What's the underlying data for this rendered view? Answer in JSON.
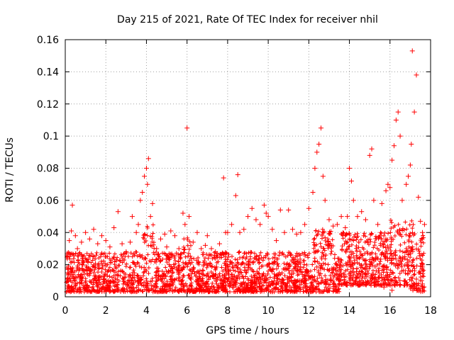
{
  "chart_data": {
    "type": "scatter",
    "title": "Day 215 of 2021, Rate Of TEC Index for receiver nhil",
    "xlabel": "GPS time / hours",
    "ylabel": "ROTI / TECUs",
    "xlim": [
      0,
      18
    ],
    "ylim": [
      0,
      0.16
    ],
    "xticks": [
      0,
      2,
      4,
      6,
      8,
      10,
      12,
      14,
      16,
      18
    ],
    "xtick_labels": [
      "0",
      "2",
      "4",
      "6",
      "8",
      "10",
      "12",
      "14",
      "16",
      "18"
    ],
    "yticks": [
      0,
      0.02,
      0.04,
      0.06,
      0.08,
      0.1,
      0.12,
      0.14,
      0.16
    ],
    "ytick_labels": [
      "0",
      "0.02",
      "0.04",
      "0.06",
      "0.08",
      "0.1",
      "0.12",
      "0.14",
      "0.16"
    ],
    "grid": true,
    "marker": "+",
    "color": "#ff0000",
    "series": [
      {
        "name": "ROTI",
        "x": [
          0.1,
          0.2,
          0.3,
          0.35,
          0.5,
          0.6,
          0.8,
          1.0,
          1.2,
          1.4,
          1.6,
          1.8,
          2.0,
          2.2,
          2.4,
          2.6,
          2.8,
          3.0,
          3.2,
          3.3,
          3.5,
          3.6,
          3.7,
          3.8,
          3.9,
          4.0,
          4.05,
          4.1,
          4.2,
          4.3,
          4.5,
          4.7,
          4.9,
          5.0,
          5.2,
          5.4,
          5.6,
          5.8,
          5.9,
          6.0,
          6.1,
          6.3,
          6.5,
          6.7,
          6.9,
          7.0,
          7.2,
          7.4,
          7.6,
          7.8,
          7.9,
          8.0,
          8.2,
          8.4,
          8.5,
          8.6,
          8.8,
          9.0,
          9.2,
          9.4,
          9.6,
          9.8,
          9.9,
          10.0,
          10.2,
          10.4,
          10.6,
          10.8,
          11.0,
          11.2,
          11.4,
          11.6,
          11.8,
          12.0,
          12.2,
          12.3,
          12.4,
          12.5,
          12.6,
          12.7,
          12.8,
          13.0,
          13.2,
          13.4,
          13.6,
          13.8,
          13.9,
          14.0,
          14.1,
          14.2,
          14.4,
          14.6,
          14.8,
          15.0,
          15.1,
          15.2,
          15.4,
          15.6,
          15.8,
          15.9,
          16.0,
          16.1,
          16.2,
          16.3,
          16.4,
          16.5,
          16.6,
          16.8,
          16.9,
          17.0,
          17.05,
          17.1,
          17.2,
          17.3,
          17.4,
          17.5,
          17.6,
          17.7,
          0.2,
          0.5,
          1.1,
          1.5,
          2.1,
          2.5,
          3.1,
          3.4,
          4.4,
          4.8,
          5.3,
          5.7,
          6.2,
          6.6,
          7.3,
          7.7,
          8.3,
          8.7,
          9.3,
          9.7,
          10.3,
          10.7,
          11.3,
          11.7,
          12.1,
          12.5,
          13.1,
          13.5,
          14.3,
          14.7,
          15.3,
          15.7,
          16.1,
          16.7,
          17.3,
          17.6
        ],
        "y": [
          0.027,
          0.035,
          0.041,
          0.057,
          0.038,
          0.03,
          0.034,
          0.04,
          0.036,
          0.042,
          0.033,
          0.038,
          0.035,
          0.031,
          0.043,
          0.053,
          0.033,
          0.028,
          0.034,
          0.05,
          0.04,
          0.045,
          0.06,
          0.065,
          0.075,
          0.08,
          0.07,
          0.086,
          0.05,
          0.058,
          0.03,
          0.036,
          0.039,
          0.031,
          0.041,
          0.038,
          0.03,
          0.052,
          0.045,
          0.105,
          0.05,
          0.034,
          0.04,
          0.03,
          0.032,
          0.038,
          0.03,
          0.028,
          0.033,
          0.074,
          0.04,
          0.04,
          0.045,
          0.063,
          0.076,
          0.04,
          0.042,
          0.05,
          0.055,
          0.048,
          0.045,
          0.057,
          0.052,
          0.05,
          0.042,
          0.035,
          0.054,
          0.04,
          0.054,
          0.042,
          0.039,
          0.04,
          0.045,
          0.055,
          0.065,
          0.08,
          0.09,
          0.095,
          0.105,
          0.075,
          0.06,
          0.048,
          0.044,
          0.045,
          0.05,
          0.043,
          0.05,
          0.08,
          0.072,
          0.06,
          0.05,
          0.053,
          0.048,
          0.088,
          0.092,
          0.06,
          0.045,
          0.058,
          0.066,
          0.07,
          0.068,
          0.085,
          0.094,
          0.11,
          0.115,
          0.1,
          0.06,
          0.07,
          0.075,
          0.082,
          0.095,
          0.153,
          0.115,
          0.138,
          0.062,
          0.047,
          0.04,
          0.045,
          0.006,
          0.008,
          0.007,
          0.01,
          0.006,
          0.009,
          0.008,
          0.012,
          0.007,
          0.005,
          0.009,
          0.008,
          0.011,
          0.007,
          0.006,
          0.01,
          0.009,
          0.008,
          0.012,
          0.007,
          0.01,
          0.006,
          0.009,
          0.011,
          0.012,
          0.008,
          0.01,
          0.013,
          0.012,
          0.009,
          0.011,
          0.006,
          0.004,
          0.01,
          0.011,
          0.008
        ]
      }
    ]
  }
}
